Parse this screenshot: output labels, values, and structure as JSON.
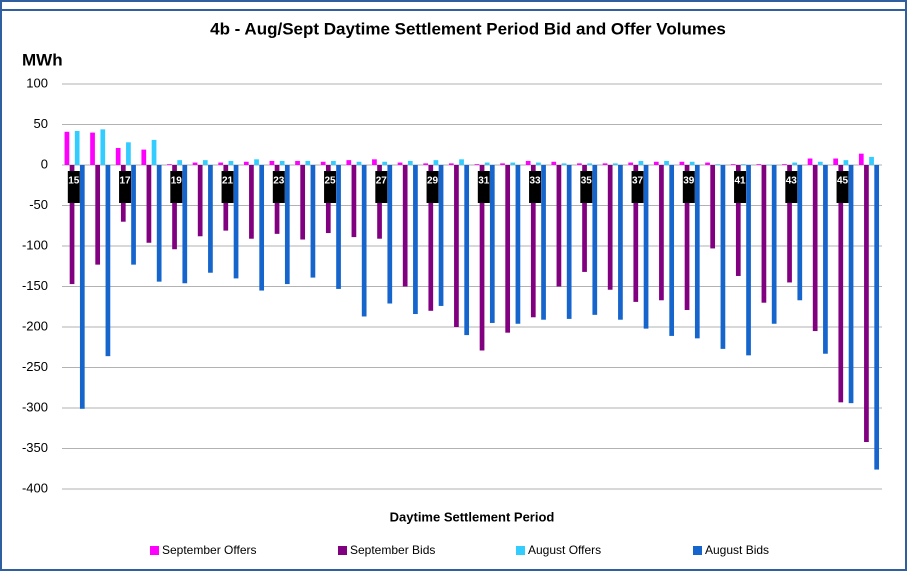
{
  "chart_data": {
    "type": "bar",
    "title": "4b - Aug/Sept Daytime Settlement Period Bid and Offer Volumes",
    "y_label": "MWh",
    "x_label": "Daytime Settlement Period",
    "categories": [
      "15",
      null,
      "17",
      null,
      "19",
      null,
      "21",
      null,
      "23",
      null,
      "25",
      null,
      "27",
      null,
      "29",
      null,
      "31",
      null,
      "33",
      null,
      "35",
      null,
      "37",
      null,
      "39",
      null,
      "41",
      null,
      "43",
      null,
      "45",
      null
    ],
    "series": [
      {
        "name": "September Offers",
        "color": "#ff00ff",
        "values": [
          41,
          40,
          21,
          19,
          1,
          3,
          3,
          4,
          5,
          5,
          4,
          6,
          7,
          3,
          2,
          2,
          1,
          2,
          5,
          4,
          2,
          2,
          3,
          4,
          4,
          3,
          1,
          1,
          1,
          8,
          8,
          14
        ]
      },
      {
        "name": "September Bids",
        "color": "#800080",
        "values": [
          -147,
          -123,
          -70,
          -96,
          -104,
          -88,
          -81,
          -91,
          -85,
          -92,
          -84,
          -89,
          -91,
          -150,
          -180,
          -200,
          -229,
          -207,
          -188,
          -150,
          -132,
          -154,
          -169,
          -167,
          -179,
          -103,
          -137,
          -170,
          -145,
          -205,
          -293,
          -342
        ]
      },
      {
        "name": "August Offers",
        "color": "#33ccff",
        "values": [
          42,
          44,
          28,
          31,
          6,
          6,
          5,
          7,
          5,
          5,
          5,
          4,
          4,
          5,
          6,
          7,
          3,
          3,
          3,
          2,
          2,
          2,
          5,
          5,
          4,
          1,
          1,
          0,
          3,
          4,
          6,
          10
        ]
      },
      {
        "name": "August Bids",
        "color": "#1565cc",
        "values": [
          -301,
          -236,
          -123,
          -144,
          -146,
          -133,
          -140,
          -155,
          -147,
          -139,
          -153,
          -187,
          -171,
          -184,
          -174,
          -210,
          -195,
          -196,
          -191,
          -190,
          -185,
          -191,
          -202,
          -211,
          -214,
          -227,
          -235,
          -196,
          -167,
          -233,
          -294,
          -376
        ]
      }
    ],
    "ylim": [
      -400,
      100
    ],
    "yticks": [
      -400,
      -350,
      -300,
      -250,
      -200,
      -150,
      -100,
      -50,
      0,
      50,
      100
    ],
    "grid": true,
    "legend": "bottom"
  }
}
